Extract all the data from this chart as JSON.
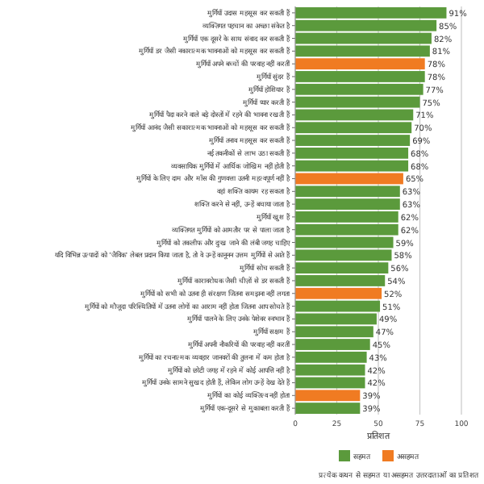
{
  "chart_data": {
    "type": "bar",
    "orientation": "horizontal",
    "categories": [
      "मुर्गियाँ उदास महसूस कर सकती हैं",
      "व्यक्तिगत पहचान का अच्छा संकेत है",
      "मुर्गियाँ एक दूसरे के साथ संवाद कर सकती हैं",
      "मुर्गियाँ डर जैसी नकारात्मक भावनाओं को महसूस कर सकती हैं",
      "मुर्गियाँ अपने बच्चों की परवाह नहीं करतीं",
      "मुर्गियाँ सुंदर हैं",
      "मुर्गियाँ होशियार हैं",
      "मुर्गियाँ प्यार करती हैं",
      "मुर्गियाँ पैदा करने वाले बड़े दोस्तों में रहने की भावना रखती हैं",
      "मुर्गियाँ आनंद जैसी सकारात्मक भावनाओं को महसूस कर सकती हैं",
      "मुर्गियाँ तनाव महसूस कर सकती हैं",
      "नई तकनीकों से लाभ उठा सकती हैं",
      "व्यवसायिक मुर्गियों में आर्थिक जोखिम नहीं होती है",
      "मुर्गियों के लिए दाम और माँस की गुणवत्ता उतनी महत्वपूर्ण नहीं है",
      "वहां शक्ति कायम रह सकता है",
      "शक्ति करने से नहीं, उन्हें बचाया जाता है",
      "मुर्गियाँ खुश हैं",
      "व्यक्तिगत मुर्गियों को आमतौर पर से पाला जाता है",
      "मुर्गियों को तकलीफ और दुःख जाने की लंबी जगह चाहिए",
      "यदि विभिन्न उत्पादों को 'जैविक' लेबल प्रदान किया जाता है, तो वे उन्हें कानूनन उत्तम मुर्गियों से आते हैं",
      "मुर्गियाँ सोच सकती हैं",
      "मुर्गियाँ कारावरोधक जैसी चीज़ों से डर सकती हैं",
      "मुर्गियों को सभी को उतना ही संरक्षण जितना समझना नहीं लगता",
      "मुर्गियों को मौजूदा परिस्थितियों में उतना लोगों का आराम नहीं होता जितना आप सोचते हैं",
      "मुर्गियाँ पालने के लिए उनके पेशेवर स्वभाव हैं",
      "मुर्गियाँ सक्षम हैं",
      "मुर्गियाँ अपनी नौकरियों की परवाह नहीं करतीं",
      "मुर्गियों का रचनात्मक व्यवहार जानवरों की तुलना में कम होता है",
      "मुर्गियों को छोटी जगह में रहने में कोई आपत्ति नहीं है",
      "मुर्गियाँ उनके सामने सुखद होती हैं, लेकिन लोग उन्हें देख देते हैं",
      "मुर्गियों का कोई व्यक्तित्व नहीं होता",
      "मुर्गियाँ एक-दूसरे से मुकाबला करती हैं"
    ],
    "series": [
      {
        "name": "सहमत",
        "color": "#5b9a3c",
        "values": [
          91,
          85,
          82,
          81,
          null,
          78,
          77,
          75,
          71,
          70,
          69,
          68,
          68,
          null,
          63,
          63,
          62,
          62,
          59,
          58,
          56,
          54,
          null,
          51,
          49,
          47,
          45,
          43,
          42,
          42,
          null,
          39
        ],
        "value_labels": [
          "91%",
          "85%",
          "82%",
          "81%",
          null,
          "78%",
          "77%",
          "75%",
          "71%",
          "70%",
          "69%",
          "68%",
          "68%",
          null,
          "63%",
          "63%",
          "62%",
          "62%",
          "59%",
          "58%",
          "56%",
          "54%",
          null,
          "51%",
          "49%",
          "47%",
          "45%",
          "43%",
          "42%",
          "42%",
          null,
          "39%"
        ]
      },
      {
        "name": "असहमत",
        "color": "#f07b22",
        "values": [
          null,
          null,
          null,
          null,
          78,
          null,
          null,
          null,
          null,
          null,
          null,
          null,
          null,
          65,
          null,
          null,
          null,
          null,
          null,
          null,
          null,
          null,
          52,
          null,
          null,
          null,
          null,
          null,
          null,
          null,
          39,
          null
        ],
        "value_labels": [
          null,
          null,
          null,
          null,
          "78%",
          null,
          null,
          null,
          null,
          null,
          null,
          null,
          null,
          "65%",
          null,
          null,
          null,
          null,
          null,
          null,
          null,
          null,
          "52%",
          null,
          null,
          null,
          null,
          null,
          null,
          null,
          "39%",
          null
        ]
      }
    ],
    "xlim": [
      0,
      100
    ],
    "xticks": [
      0,
      25,
      50,
      75,
      100
    ],
    "xlabel": "प्रतिशत",
    "grid": "x",
    "legend": "bottom",
    "annotations": [
      "प्रत्येक कथन से सहमत या असहमत उत्तरदाताओं का प्रतिशत"
    ]
  }
}
